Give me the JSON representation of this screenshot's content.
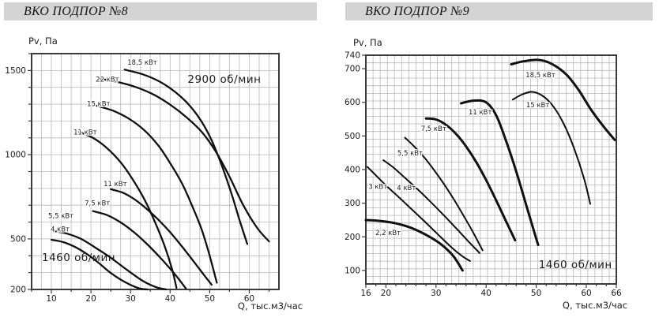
{
  "panels": [
    {
      "title": "ВКО ПОДПОР №8"
    },
    {
      "title": "ВКО ПОДПОР №9"
    }
  ],
  "colors": {
    "header_bg": "#d4d4d4",
    "curve": "#101010",
    "grid": "#b8b8b8",
    "axis": "#3b3b3b"
  },
  "chart_data": [
    {
      "type": "line",
      "title": "ВКО ПОДПОР №8",
      "xlabel": "Q, тыс.м3/час",
      "ylabel": "Pv, Па",
      "xlim": [
        5,
        67.5
      ],
      "ylim": [
        200,
        1600
      ],
      "xticks": [
        10,
        20,
        30,
        40,
        50,
        60
      ],
      "yticks": [
        1500,
        1000,
        500,
        200
      ],
      "grid": true,
      "legend_position": "none",
      "annotations": [
        {
          "text": "2900 об/мин",
          "q": 53.7,
          "p": 1445,
          "anchor": "middle"
        },
        {
          "text": "1460 об/мин",
          "q": 7.6,
          "p": 387,
          "anchor": "start"
        }
      ],
      "series": [
        {
          "name": "18,5 кВт",
          "rpm": 2900,
          "w": 2.3,
          "label": {
            "q": 29.2,
            "p": 1548,
            "anchor": "start"
          },
          "points": [
            [
              28.5,
              1505
            ],
            [
              33,
              1478
            ],
            [
              37.5,
              1432
            ],
            [
              41.5,
              1368
            ],
            [
              45,
              1290
            ],
            [
              48,
              1195
            ],
            [
              50.5,
              1085
            ],
            [
              53,
              940
            ],
            [
              55.5,
              770
            ],
            [
              57.5,
              615
            ],
            [
              59.5,
              470
            ]
          ]
        },
        {
          "name": "22 кВт",
          "rpm": 2900,
          "w": 2.3,
          "label": {
            "q": 21.2,
            "p": 1447,
            "anchor": "start"
          },
          "points": [
            [
              22.5,
              1450
            ],
            [
              27,
              1430
            ],
            [
              31.5,
              1400
            ],
            [
              36,
              1355
            ],
            [
              40,
              1297
            ],
            [
              44,
              1225
            ],
            [
              48,
              1135
            ],
            [
              51.5,
              1020
            ],
            [
              55,
              870
            ],
            [
              58.5,
              700
            ],
            [
              62,
              565
            ],
            [
              65,
              485
            ]
          ]
        },
        {
          "name": "15 кВт",
          "rpm": 2900,
          "w": 2.3,
          "label": {
            "q": 19.0,
            "p": 1302,
            "anchor": "start"
          },
          "points": [
            [
              21.5,
              1290
            ],
            [
              25.5,
              1262
            ],
            [
              29.5,
              1215
            ],
            [
              33.5,
              1145
            ],
            [
              37,
              1055
            ],
            [
              40,
              950
            ],
            [
              43,
              830
            ],
            [
              45.5,
              700
            ],
            [
              48,
              555
            ],
            [
              50,
              400
            ],
            [
              51.8,
              240
            ]
          ]
        },
        {
          "name": "11 кВт",
          "rpm": 2900,
          "w": 2.3,
          "label": {
            "q": 15.6,
            "p": 1135,
            "anchor": "start"
          },
          "points": [
            [
              17,
              1135
            ],
            [
              20.5,
              1100
            ],
            [
              24,
              1040
            ],
            [
              27.5,
              955
            ],
            [
              30.5,
              855
            ],
            [
              33.5,
              735
            ],
            [
              36,
              610
            ],
            [
              38.5,
              465
            ],
            [
              40.5,
              320
            ],
            [
              41.6,
              210
            ]
          ]
        },
        {
          "name": "11 кВт",
          "rpm": 1460,
          "w": 2.3,
          "label": {
            "q": 23.2,
            "p": 828,
            "anchor": "start"
          },
          "points": [
            [
              25,
              795
            ],
            [
              28,
              775
            ],
            [
              31,
              735
            ],
            [
              34,
              680
            ],
            [
              37,
              615
            ],
            [
              40,
              540
            ],
            [
              43,
              455
            ],
            [
              46,
              365
            ],
            [
              48.5,
              288
            ],
            [
              50.5,
              228
            ]
          ]
        },
        {
          "name": "7,5 кВт",
          "rpm": 1460,
          "w": 2.3,
          "label": {
            "q": 18.4,
            "p": 712,
            "anchor": "start"
          },
          "points": [
            [
              20.5,
              665
            ],
            [
              24,
              642
            ],
            [
              27.5,
              598
            ],
            [
              31,
              537
            ],
            [
              34.5,
              462
            ],
            [
              38,
              376
            ],
            [
              41.5,
              282
            ],
            [
              44,
              205
            ]
          ]
        },
        {
          "name": "5,5 кВт",
          "rpm": 1460,
          "w": 2.3,
          "label": {
            "q": 9.2,
            "p": 638,
            "anchor": "start"
          },
          "points": [
            [
              11,
              545
            ],
            [
              14,
              531
            ],
            [
              17.5,
              500
            ],
            [
              21,
              450
            ],
            [
              25,
              388
            ],
            [
              29,
              318
            ],
            [
              33,
              252
            ],
            [
              36.5,
              213
            ],
            [
              39,
              200
            ]
          ]
        },
        {
          "name": "4 кВт",
          "rpm": 1460,
          "w": 2.3,
          "label": {
            "q": 9.8,
            "p": 558,
            "anchor": "start"
          },
          "points": [
            [
              10,
              495
            ],
            [
              13,
              481
            ],
            [
              16,
              452
            ],
            [
              19,
              410
            ],
            [
              22,
              357
            ],
            [
              25,
              298
            ],
            [
              28.5,
              245
            ],
            [
              32,
              208
            ],
            [
              34.3,
              200
            ]
          ]
        }
      ]
    },
    {
      "type": "line",
      "title": "ВКО ПОДПОР №9",
      "xlabel": "Q, тыс.м3/час",
      "ylabel": "Pv, Па",
      "xlim": [
        16,
        66
      ],
      "ylim": [
        60,
        740
      ],
      "xticks": [
        16,
        20,
        30,
        40,
        50,
        60,
        66
      ],
      "yticks": [
        740,
        700,
        600,
        500,
        400,
        300,
        200,
        100
      ],
      "grid": true,
      "legend_position": "none",
      "annotations": [
        {
          "text": "1460 об/мин",
          "q": 50.5,
          "p": 116,
          "anchor": "start"
        }
      ],
      "series": [
        {
          "name": "2,2 кВт",
          "rpm": 1460,
          "w": 3,
          "label": {
            "q": 17.9,
            "p": 212,
            "anchor": "start"
          },
          "points": [
            [
              16,
              250
            ],
            [
              19,
              247
            ],
            [
              22,
              240
            ],
            [
              25,
              227
            ],
            [
              28,
              206
            ],
            [
              31,
              178
            ],
            [
              33.5,
              142
            ],
            [
              35.3,
              100
            ]
          ]
        },
        {
          "name": "3 кВт",
          "rpm": 1460,
          "w": 2,
          "label": {
            "q": 16.5,
            "p": 350,
            "anchor": "start"
          },
          "points": [
            [
              16.3,
              408
            ],
            [
              18,
              383
            ],
            [
              20,
              353
            ],
            [
              22.5,
              319
            ],
            [
              25,
              284
            ],
            [
              27.5,
              249
            ],
            [
              30,
              213
            ],
            [
              33,
              170
            ],
            [
              35.2,
              143
            ],
            [
              36.8,
              128
            ]
          ]
        },
        {
          "name": "4 кВт",
          "rpm": 1460,
          "w": 2,
          "label": {
            "q": 22.2,
            "p": 346,
            "anchor": "start"
          },
          "points": [
            [
              19.5,
              428
            ],
            [
              21.5,
              406
            ],
            [
              24,
              373
            ],
            [
              26.5,
              339
            ],
            [
              29,
              303
            ],
            [
              31.5,
              265
            ],
            [
              34,
              226
            ],
            [
              36.5,
              186
            ],
            [
              38.7,
              152
            ]
          ]
        },
        {
          "name": "5,5 кВт",
          "rpm": 1460,
          "w": 2,
          "label": {
            "q": 22.3,
            "p": 449,
            "anchor": "start"
          },
          "points": [
            [
              23.8,
              495
            ],
            [
              25.5,
              471
            ],
            [
              27.5,
              439
            ],
            [
              29.5,
              401
            ],
            [
              31.5,
              359
            ],
            [
              33.5,
              313
            ],
            [
              35.5,
              263
            ],
            [
              37.5,
              211
            ],
            [
              39.3,
              160
            ]
          ]
        },
        {
          "name": "7,5 кВт",
          "rpm": 1460,
          "w": 3,
          "label": {
            "q": 27.0,
            "p": 522,
            "anchor": "start"
          },
          "points": [
            [
              28,
              552
            ],
            [
              30,
              549
            ],
            [
              32,
              533
            ],
            [
              34,
              506
            ],
            [
              36,
              469
            ],
            [
              38,
              423
            ],
            [
              40,
              369
            ],
            [
              42,
              309
            ],
            [
              44,
              246
            ],
            [
              45.8,
              190
            ]
          ]
        },
        {
          "name": "11 кВт",
          "rpm": 1460,
          "w": 3,
          "label": {
            "q": 36.5,
            "p": 571,
            "anchor": "start"
          },
          "points": [
            [
              35,
              597
            ],
            [
              37.5,
              605
            ],
            [
              40,
              600
            ],
            [
              42,
              562
            ],
            [
              44,
              485
            ],
            [
              46,
              395
            ],
            [
              48,
              295
            ],
            [
              50,
              195
            ],
            [
              50.4,
              176
            ]
          ]
        },
        {
          "name": "15 кВт",
          "rpm": 1460,
          "w": 2,
          "label": {
            "q": 48.0,
            "p": 592,
            "anchor": "start"
          },
          "points": [
            [
              45.3,
              608
            ],
            [
              47.3,
              624
            ],
            [
              49.3,
              631
            ],
            [
              51.5,
              617
            ],
            [
              53.5,
              586
            ],
            [
              55.5,
              536
            ],
            [
              57.5,
              466
            ],
            [
              59.5,
              376
            ],
            [
              60.8,
              298
            ]
          ]
        },
        {
          "name": "18,5 кВт",
          "rpm": 1460,
          "w": 3,
          "label": {
            "q": 47.9,
            "p": 681,
            "anchor": "start"
          },
          "points": [
            [
              45,
              713
            ],
            [
              47.5,
              722
            ],
            [
              50.5,
              726
            ],
            [
              53,
              715
            ],
            [
              56,
              683
            ],
            [
              58.5,
              636
            ],
            [
              61,
              577
            ],
            [
              63.5,
              527
            ],
            [
              65.7,
              488
            ]
          ]
        }
      ]
    }
  ]
}
